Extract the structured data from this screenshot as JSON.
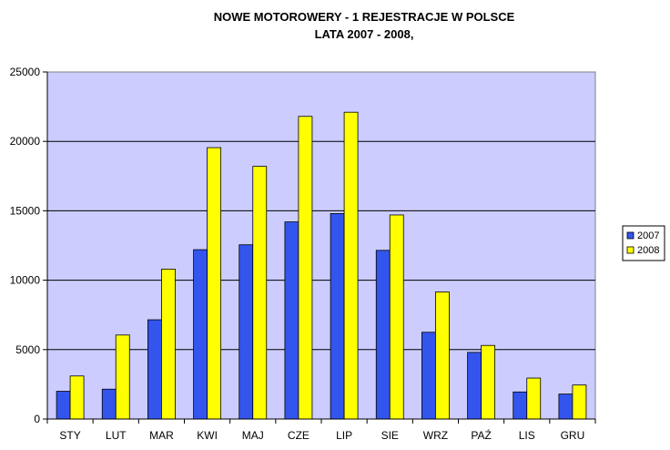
{
  "chart_data": {
    "type": "bar",
    "title": "NOWE MOTOROWERY - 1 REJESTRACJE W POLSCE",
    "subtitle": "LATA 2007 - 2008,",
    "categories": [
      "STY",
      "LUT",
      "MAR",
      "KWI",
      "MAJ",
      "CZE",
      "LIP",
      "SIE",
      "WRZ",
      "PAŹ",
      "LIS",
      "GRU"
    ],
    "series": [
      {
        "name": "2007",
        "color": "#3355ee",
        "values": [
          2000,
          2150,
          7150,
          12200,
          12550,
          14200,
          14800,
          12150,
          6250,
          4800,
          1950,
          1800
        ]
      },
      {
        "name": "2008",
        "color": "#ffff00",
        "values": [
          3100,
          6050,
          10800,
          19550,
          18200,
          21800,
          22100,
          14700,
          9150,
          5300,
          2950,
          2450
        ]
      }
    ],
    "ylim": [
      0,
      25000
    ],
    "yticks": [
      0,
      5000,
      10000,
      15000,
      20000,
      25000
    ],
    "grid": true,
    "legend": "right",
    "plot_background": "#ccccff"
  }
}
